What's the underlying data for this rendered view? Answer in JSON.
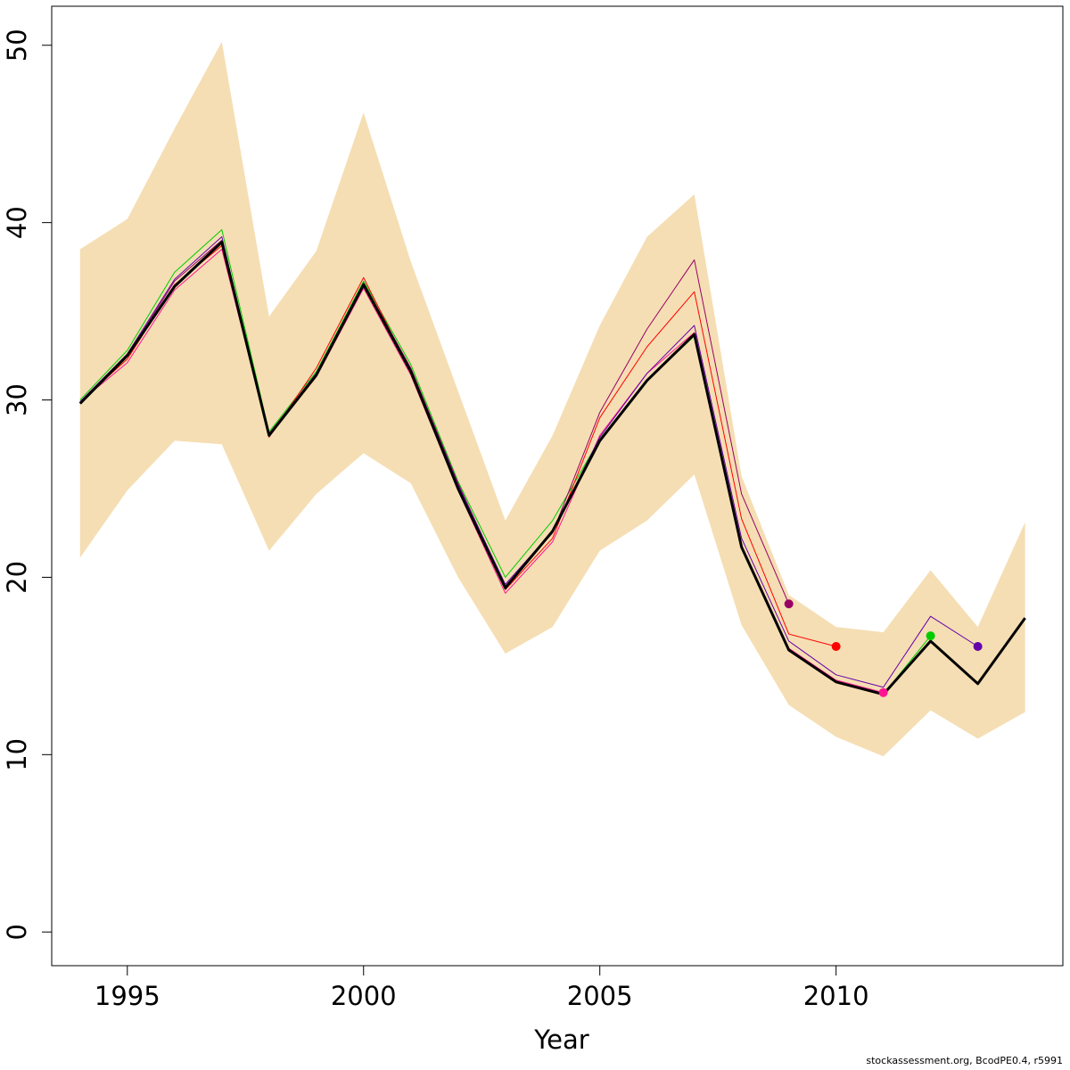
{
  "chart_data": {
    "type": "line",
    "title": "",
    "xlabel": "Year",
    "ylabel": "",
    "xlim": [
      1993.4,
      2014.8
    ],
    "ylim": [
      -1.9,
      52.2
    ],
    "x_ticks": [
      1995,
      2000,
      2005,
      2010
    ],
    "y_ticks": [
      0,
      10,
      20,
      30,
      40,
      50
    ],
    "grid": false,
    "legend": "none",
    "band": {
      "color": "#F5DEB3",
      "years": [
        1994,
        1995,
        1996,
        1997,
        1998,
        1999,
        2000,
        2001,
        2002,
        2003,
        2004,
        2005,
        2006,
        2007,
        2008,
        2009,
        2010,
        2011,
        2012,
        2013,
        2014
      ],
      "upper": [
        38.5,
        40.2,
        45.3,
        50.2,
        34.7,
        38.4,
        46.2,
        37.8,
        30.5,
        23.2,
        28.0,
        34.2,
        39.2,
        41.6,
        25.7,
        19.0,
        17.2,
        16.9,
        20.4,
        17.2,
        23.1
      ],
      "lower": [
        21.1,
        24.9,
        27.7,
        27.5,
        21.5,
        24.7,
        27.0,
        25.3,
        20.0,
        15.7,
        17.2,
        21.5,
        23.2,
        25.8,
        17.3,
        12.8,
        11.0,
        9.9,
        12.5,
        10.9,
        12.4
      ]
    },
    "series": [
      {
        "color": "#00CC00",
        "width": 1,
        "x": [
          1994,
          1995,
          1996,
          1997,
          1998,
          1999,
          2000,
          2001,
          2002,
          2003,
          2004,
          2005,
          2006,
          2007,
          2008,
          2009,
          2010,
          2011,
          2012
        ],
        "y": [
          30.0,
          32.8,
          37.2,
          39.6,
          28.2,
          31.6,
          36.7,
          32.0,
          25.4,
          20.0,
          23.2,
          27.8,
          31.1,
          33.6,
          21.7,
          15.9,
          14.1,
          13.4,
          16.7
        ],
        "end_point": true
      },
      {
        "color": "#FF1493",
        "width": 1,
        "x": [
          1994,
          1995,
          1996,
          1997,
          1998,
          1999,
          2000,
          2001,
          2002,
          2003,
          2004,
          2005,
          2006,
          2007,
          2008,
          2009,
          2010,
          2011
        ],
        "y": [
          29.9,
          32.1,
          36.2,
          38.5,
          28.0,
          31.3,
          36.3,
          31.4,
          24.9,
          19.1,
          22.0,
          28.0,
          31.5,
          33.8,
          21.8,
          16.0,
          14.2,
          13.5
        ],
        "end_point": true
      },
      {
        "color": "#FF0000",
        "width": 1,
        "x": [
          1994,
          1995,
          1996,
          1997,
          1998,
          1999,
          2000,
          2001,
          2002,
          2003,
          2004,
          2005,
          2006,
          2007,
          2008,
          2009,
          2010
        ],
        "y": [
          29.9,
          32.3,
          36.5,
          38.7,
          27.9,
          31.8,
          36.9,
          31.6,
          25.1,
          19.3,
          22.2,
          29.0,
          33.0,
          36.1,
          23.3,
          16.8,
          16.1
        ],
        "end_point": true
      },
      {
        "color": "#990066",
        "width": 1,
        "x": [
          1994,
          1995,
          1996,
          1997,
          1998,
          1999,
          2000,
          2001,
          2002,
          2003,
          2004,
          2005,
          2006,
          2007,
          2008,
          2009
        ],
        "y": [
          29.8,
          32.5,
          36.7,
          39.0,
          28.1,
          31.5,
          36.6,
          31.8,
          25.3,
          19.5,
          22.5,
          29.3,
          34.0,
          37.9,
          24.7,
          18.5
        ],
        "end_point": true
      },
      {
        "color": "#6600AA",
        "width": 1,
        "x": [
          1994,
          1995,
          1996,
          1997,
          1998,
          1999,
          2000,
          2001,
          2002,
          2003,
          2004,
          2005,
          2006,
          2007,
          2008,
          2009,
          2010,
          2011,
          2012,
          2013
        ],
        "y": [
          29.9,
          32.6,
          36.8,
          39.2,
          28.0,
          31.5,
          36.5,
          31.7,
          25.2,
          19.6,
          22.6,
          27.9,
          31.5,
          34.2,
          22.2,
          16.4,
          14.5,
          13.8,
          17.8,
          16.1
        ],
        "end_point": true
      },
      {
        "color": "#000000",
        "width": 3,
        "x": [
          1994,
          1995,
          1996,
          1997,
          1998,
          1999,
          2000,
          2001,
          2002,
          2003,
          2004,
          2005,
          2006,
          2007,
          2008,
          2009,
          2010,
          2011,
          2012,
          2013,
          2014
        ],
        "y": [
          29.8,
          32.5,
          36.4,
          38.9,
          28.0,
          31.4,
          36.5,
          31.6,
          25.0,
          19.4,
          22.6,
          27.7,
          31.1,
          33.7,
          21.7,
          15.9,
          14.1,
          13.4,
          16.4,
          14.0,
          17.7
        ],
        "end_point": false
      }
    ],
    "footnote": "stockassessment.org, BcodPE0.4, r5991"
  }
}
